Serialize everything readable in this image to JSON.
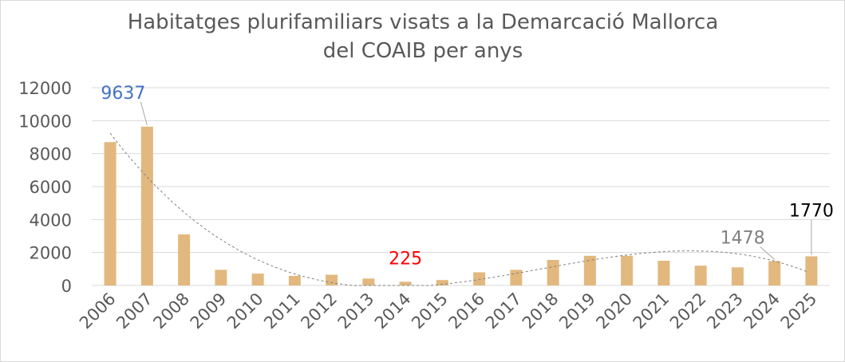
{
  "chart_data": {
    "type": "bar",
    "title_line1": "Habitatges plurifamiliars visats a la Demarcació Mallorca",
    "title_line2": "del COAIB per anys",
    "xlabel": "",
    "ylabel": "",
    "ylim": [
      0,
      12000
    ],
    "yticks": [
      0,
      2000,
      4000,
      6000,
      8000,
      10000,
      12000
    ],
    "grid": true,
    "legend": "none",
    "bar_color": "#E2B87E",
    "trendline": {
      "type": "polynomial",
      "style": "dashed",
      "color": "#7f7f7f"
    },
    "categories": [
      "2006",
      "2007",
      "2008",
      "2009",
      "2010",
      "2011",
      "2012",
      "2013",
      "2014",
      "2015",
      "2016",
      "2017",
      "2018",
      "2019",
      "2020",
      "2021",
      "2022",
      "2023",
      "2024",
      "2025"
    ],
    "values": [
      8700,
      9637,
      3100,
      950,
      720,
      580,
      650,
      420,
      225,
      330,
      800,
      950,
      1550,
      1800,
      1800,
      1500,
      1200,
      1100,
      1478,
      1770
    ],
    "annotations": [
      {
        "category": "2007",
        "text": "9637",
        "color": "#4472C4"
      },
      {
        "category": "2014",
        "text": "225",
        "color": "#FF0000"
      },
      {
        "category": "2024",
        "text": "1478",
        "color": "#808080"
      },
      {
        "category": "2025",
        "text": "1770",
        "color": "#000000"
      }
    ]
  }
}
